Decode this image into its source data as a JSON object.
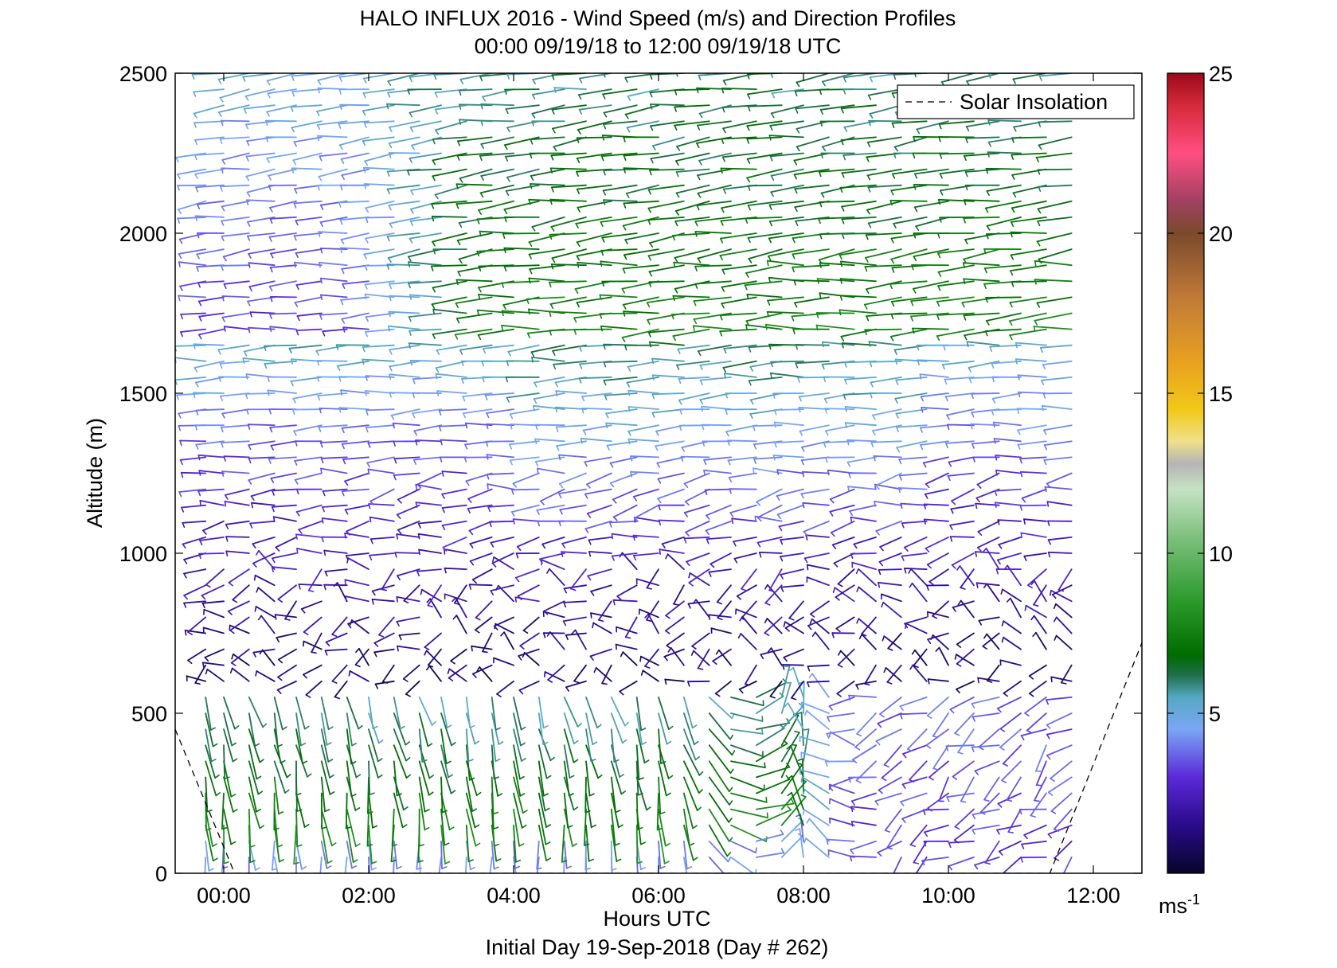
{
  "chart_data": {
    "type": "wind-barb profile (time-height)",
    "title": "HALO INFLUX 2016 - Wind Speed (m/s) and Direction Profiles",
    "subtitle": "00:00 09/19/18 to 12:00 09/19/18  UTC",
    "xlabel": "Hours UTC",
    "x_footer": "Initial Day 19-Sep-2018 (Day # 262)",
    "ylabel": "Altitude (m)",
    "x_range_hours": [
      -0.67,
      12.67
    ],
    "ylim": [
      0,
      2500
    ],
    "x_ticks": [
      {
        "hour": 0,
        "label": "00:00"
      },
      {
        "hour": 2,
        "label": "02:00"
      },
      {
        "hour": 4,
        "label": "04:00"
      },
      {
        "hour": 6,
        "label": "06:00"
      },
      {
        "hour": 8,
        "label": "08:00"
      },
      {
        "hour": 10,
        "label": "10:00"
      },
      {
        "hour": 12,
        "label": "12:00"
      }
    ],
    "y_ticks": [
      0,
      500,
      1000,
      1500,
      2000,
      2500
    ],
    "legend": {
      "entry": "Solar Insolation",
      "style": "dashed",
      "placement": "top-right"
    },
    "colorbar": {
      "range": [
        0,
        25
      ],
      "ticks": [
        5,
        10,
        15,
        20,
        25
      ],
      "unit_label": "ms",
      "unit_exponent": "-1",
      "stops": [
        {
          "v": 0,
          "c": "#06062a"
        },
        {
          "v": 1.5,
          "c": "#2a0a8a"
        },
        {
          "v": 3,
          "c": "#5a2ad8"
        },
        {
          "v": 4.5,
          "c": "#7aa6f5"
        },
        {
          "v": 5.5,
          "c": "#56a8c2"
        },
        {
          "v": 6.2,
          "c": "#1e6e4a"
        },
        {
          "v": 6.8,
          "c": "#006b00"
        },
        {
          "v": 8.5,
          "c": "#2b9a2b"
        },
        {
          "v": 10.5,
          "c": "#7dc07d"
        },
        {
          "v": 12,
          "c": "#c6e2c4"
        },
        {
          "v": 12.8,
          "c": "#b4b4b4"
        },
        {
          "v": 13.5,
          "c": "#f0e08a"
        },
        {
          "v": 14.5,
          "c": "#f2c818"
        },
        {
          "v": 16,
          "c": "#e8a020"
        },
        {
          "v": 18,
          "c": "#c07a38"
        },
        {
          "v": 20,
          "c": "#7a4a2c"
        },
        {
          "v": 21,
          "c": "#a04060"
        },
        {
          "v": 22.5,
          "c": "#ff4f82"
        },
        {
          "v": 24,
          "c": "#d52a3a"
        },
        {
          "v": 25,
          "c": "#9a0a1a"
        }
      ]
    },
    "solar_insolation_curve": [
      {
        "hour": -0.67,
        "alt": 450
      },
      {
        "hour": 0.15,
        "alt": 0
      },
      {
        "hour": 11.4,
        "alt": 0
      },
      {
        "hour": 12.67,
        "alt": 720
      }
    ],
    "profile_times_hours": [
      -0.25,
      0.0,
      0.35,
      0.7,
      1.0,
      1.35,
      1.7,
      2.0,
      2.35,
      2.7,
      3.0,
      3.35,
      3.7,
      4.0,
      4.35,
      4.7,
      5.0,
      5.35,
      5.7,
      6.0,
      6.35,
      6.7,
      7.0,
      7.35,
      7.7,
      8.0,
      8.35,
      8.7,
      9.0,
      9.35,
      9.7,
      10.0,
      10.35,
      10.7,
      11.0,
      11.35,
      11.7
    ],
    "gate_altitudes_m": [
      50,
      100,
      150,
      200,
      250,
      300,
      350,
      400,
      450,
      500,
      550,
      600,
      650,
      700,
      750,
      800,
      850,
      900,
      950,
      1000,
      1050,
      1100,
      1150,
      1200,
      1250,
      1300,
      1350,
      1400,
      1450,
      1500,
      1550,
      1600,
      1650,
      1700,
      1750,
      1800,
      1850,
      1900,
      1950,
      2000,
      2050,
      2100,
      2150,
      2200,
      2250,
      2300,
      2350,
      2400,
      2450,
      2500
    ],
    "speed_field_summary": [
      {
        "layer": "0-600 m, 00:00-07:30",
        "speed_ms": [
          6,
          10
        ],
        "direction": "from the south, near-vertical barbs"
      },
      {
        "layer": "0-400 m, 08:00-12:00",
        "speed_ms": [
          1,
          5
        ],
        "direction": "variable, light and veering"
      },
      {
        "layer": "600-1100 m, 02:00-10:00",
        "speed_ms": [
          0.5,
          3
        ],
        "direction": "light and variable"
      },
      {
        "layer": "1100-1700 m",
        "speed_ms": [
          2,
          6
        ],
        "direction": "westerly"
      },
      {
        "layer": "1700-2500 m, 04:00-12:00",
        "speed_ms": [
          6,
          9
        ],
        "direction": "westerly"
      },
      {
        "layer": "1700-2500 m, 00:00-02:00",
        "speed_ms": [
          2,
          5
        ],
        "direction": "westerly"
      }
    ]
  }
}
